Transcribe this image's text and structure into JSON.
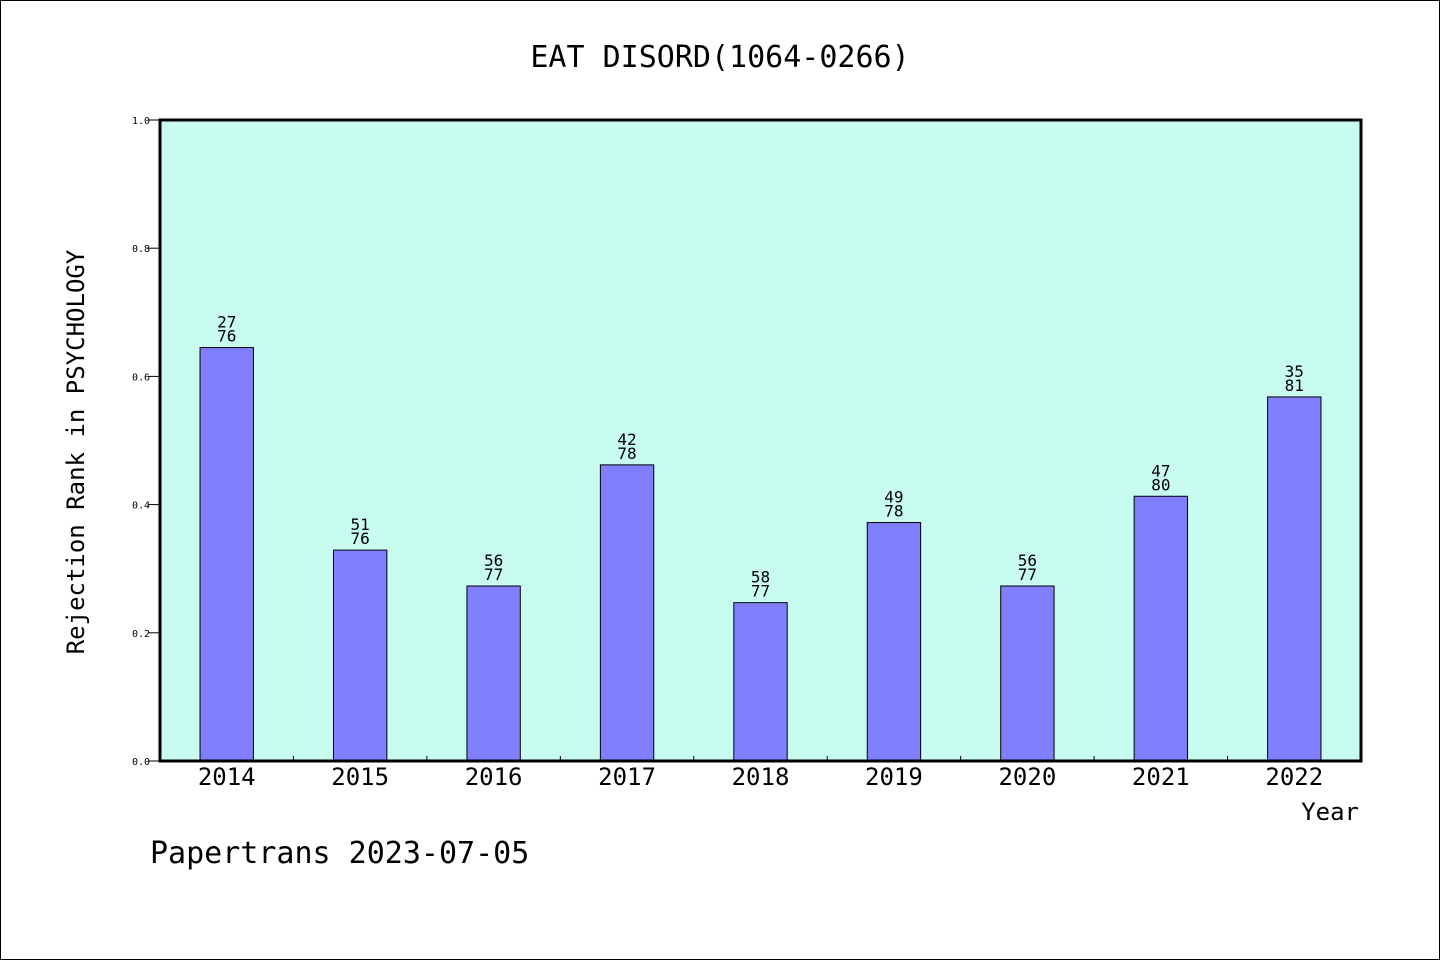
{
  "chart_data": {
    "type": "bar",
    "title": "EAT DISORD(1064-0266)",
    "xlabel": "Year",
    "ylabel": "Rejection Rank in PSYCHOLOGY",
    "categories": [
      "2014",
      "2015",
      "2016",
      "2017",
      "2018",
      "2019",
      "2020",
      "2021",
      "2022"
    ],
    "values": [
      0.645,
      0.329,
      0.273,
      0.462,
      0.247,
      0.372,
      0.273,
      0.413,
      0.568
    ],
    "labels_top": [
      "27",
      "51",
      "56",
      "42",
      "58",
      "49",
      "56",
      "47",
      "35"
    ],
    "labels_bottom": [
      "76",
      "76",
      "77",
      "78",
      "77",
      "78",
      "77",
      "80",
      "81"
    ],
    "ylim": [
      0,
      1
    ],
    "yticks": [
      "0.0",
      "0.2",
      "0.4",
      "0.6",
      "0.8",
      "1.0"
    ],
    "grid": false,
    "legend": "none",
    "colors": {
      "plot_bg": "#c8fcef",
      "bar": "#8080ff",
      "bar_edge": "#000000"
    }
  },
  "footer": {
    "credit": "Papertrans 2023-07-05"
  }
}
